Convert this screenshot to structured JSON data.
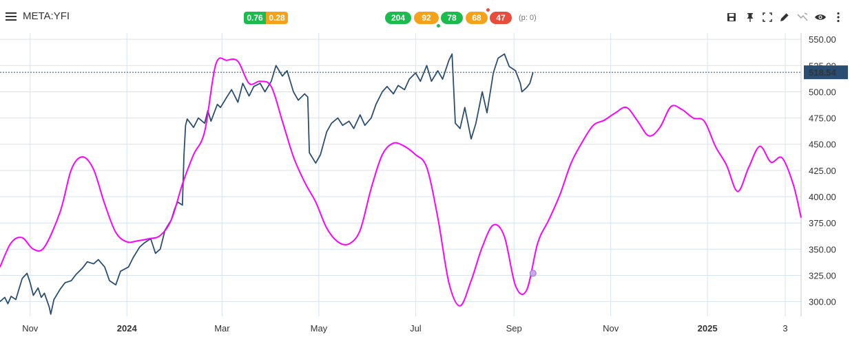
{
  "toolbar": {
    "symbol": "META:YFI",
    "badges_left": [
      "0.76",
      "0.28"
    ],
    "badges_right": [
      "204",
      "92",
      "78",
      "68",
      "47"
    ],
    "p_count": "(p: 0)",
    "tools": [
      "save-icon",
      "pin-icon",
      "fullscreen-icon",
      "draw-icon",
      "indicator-icon",
      "eye-icon",
      "more-icon"
    ]
  },
  "colors": {
    "price_line": "#2a4d72",
    "indicator_line": "#ff00ff",
    "grid": "#d6e3ee",
    "last_price_bg": "#2a4d72",
    "badge_green": "#1bbc4d",
    "badge_orange": "#f5a21b",
    "badge_red": "#e74c3c"
  },
  "chart_data": {
    "type": "line",
    "y_axis": {
      "ticks": [
        "300.00",
        "325.00",
        "350.00",
        "375.00",
        "400.00",
        "425.00",
        "450.00",
        "475.00",
        "500.00",
        "525.00",
        "550.00"
      ],
      "range": [
        286,
        556
      ],
      "position": "right"
    },
    "x_axis": {
      "ticks": [
        {
          "date": "2023-11-01",
          "label": "Nov",
          "bold": false
        },
        {
          "date": "2024-01-01",
          "label": "2024",
          "bold": true
        },
        {
          "date": "2024-03-01",
          "label": "Mar",
          "bold": false
        },
        {
          "date": "2024-05-01",
          "label": "May",
          "bold": false
        },
        {
          "date": "2024-07-01",
          "label": "Jul",
          "bold": false
        },
        {
          "date": "2024-09-01",
          "label": "Sep",
          "bold": false
        },
        {
          "date": "2024-11-01",
          "label": "Nov",
          "bold": false
        },
        {
          "date": "2025-01-01",
          "label": "2025",
          "bold": true
        },
        {
          "date": "2025-02-19",
          "label": "3",
          "bold": false
        }
      ],
      "range": [
        "2023-10-13",
        "2025-03-01"
      ]
    },
    "last_price": "518.54",
    "grid": true,
    "series": [
      {
        "color": "#2a4d72",
        "points": [
          [
            "2023-10-13",
            300
          ],
          [
            "2023-10-16",
            304
          ],
          [
            "2023-10-18",
            298
          ],
          [
            "2023-10-20",
            305
          ],
          [
            "2023-10-23",
            302
          ],
          [
            "2023-10-25",
            312
          ],
          [
            "2023-10-27",
            322
          ],
          [
            "2023-10-30",
            327
          ],
          [
            "2023-11-01",
            318
          ],
          [
            "2023-11-03",
            306
          ],
          [
            "2023-11-06",
            313
          ],
          [
            "2023-11-08",
            304
          ],
          [
            "2023-11-10",
            308
          ],
          [
            "2023-11-13",
            295
          ],
          [
            "2023-11-14",
            288
          ],
          [
            "2023-11-16",
            302
          ],
          [
            "2023-11-20",
            312
          ],
          [
            "2023-11-23",
            318
          ],
          [
            "2023-11-27",
            320
          ],
          [
            "2023-11-30",
            326
          ],
          [
            "2023-12-04",
            332
          ],
          [
            "2023-12-07",
            338
          ],
          [
            "2023-12-11",
            336
          ],
          [
            "2023-12-14",
            340
          ],
          [
            "2023-12-18",
            333
          ],
          [
            "2023-12-21",
            320
          ],
          [
            "2023-12-25",
            316
          ],
          [
            "2023-12-28",
            329
          ],
          [
            "2024-01-02",
            333
          ],
          [
            "2024-01-05",
            342
          ],
          [
            "2024-01-09",
            352
          ],
          [
            "2024-01-12",
            356
          ],
          [
            "2024-01-16",
            360
          ],
          [
            "2024-01-19",
            346
          ],
          [
            "2024-01-22",
            350
          ],
          [
            "2024-01-25",
            368
          ],
          [
            "2024-01-29",
            378
          ],
          [
            "2024-01-31",
            388
          ],
          [
            "2024-02-02",
            395
          ],
          [
            "2024-02-05",
            392
          ],
          [
            "2024-02-06",
            440
          ],
          [
            "2024-02-07",
            468
          ],
          [
            "2024-02-08",
            474
          ],
          [
            "2024-02-12",
            466
          ],
          [
            "2024-02-15",
            475
          ],
          [
            "2024-02-19",
            470
          ],
          [
            "2024-02-21",
            482
          ],
          [
            "2024-02-23",
            472
          ],
          [
            "2024-02-27",
            488
          ],
          [
            "2024-02-29",
            485
          ],
          [
            "2024-03-04",
            495
          ],
          [
            "2024-03-07",
            502
          ],
          [
            "2024-03-11",
            490
          ],
          [
            "2024-03-14",
            508
          ],
          [
            "2024-03-18",
            496
          ],
          [
            "2024-03-21",
            505
          ],
          [
            "2024-03-25",
            508
          ],
          [
            "2024-03-28",
            500
          ],
          [
            "2024-04-01",
            510
          ],
          [
            "2024-04-04",
            525
          ],
          [
            "2024-04-08",
            515
          ],
          [
            "2024-04-11",
            520
          ],
          [
            "2024-04-15",
            500
          ],
          [
            "2024-04-18",
            492
          ],
          [
            "2024-04-22",
            498
          ],
          [
            "2024-04-24",
            495
          ],
          [
            "2024-04-25",
            442
          ],
          [
            "2024-04-29",
            432
          ],
          [
            "2024-05-02",
            440
          ],
          [
            "2024-05-06",
            462
          ],
          [
            "2024-05-09",
            470
          ],
          [
            "2024-05-13",
            475
          ],
          [
            "2024-05-16",
            468
          ],
          [
            "2024-05-20",
            472
          ],
          [
            "2024-05-23",
            465
          ],
          [
            "2024-05-27",
            478
          ],
          [
            "2024-05-30",
            468
          ],
          [
            "2024-06-03",
            475
          ],
          [
            "2024-06-06",
            488
          ],
          [
            "2024-06-10",
            500
          ],
          [
            "2024-06-13",
            505
          ],
          [
            "2024-06-17",
            498
          ],
          [
            "2024-06-20",
            506
          ],
          [
            "2024-06-24",
            502
          ],
          [
            "2024-06-27",
            512
          ],
          [
            "2024-07-01",
            518
          ],
          [
            "2024-07-04",
            510
          ],
          [
            "2024-07-08",
            525
          ],
          [
            "2024-07-11",
            510
          ],
          [
            "2024-07-15",
            520
          ],
          [
            "2024-07-18",
            512
          ],
          [
            "2024-07-22",
            530
          ],
          [
            "2024-07-24",
            536
          ],
          [
            "2024-07-26",
            470
          ],
          [
            "2024-07-29",
            465
          ],
          [
            "2024-08-01",
            485
          ],
          [
            "2024-08-05",
            455
          ],
          [
            "2024-08-08",
            470
          ],
          [
            "2024-08-12",
            500
          ],
          [
            "2024-08-15",
            480
          ],
          [
            "2024-08-19",
            518
          ],
          [
            "2024-08-22",
            532
          ],
          [
            "2024-08-26",
            536
          ],
          [
            "2024-08-29",
            524
          ],
          [
            "2024-09-02",
            520
          ],
          [
            "2024-09-05",
            508
          ],
          [
            "2024-09-06",
            500
          ],
          [
            "2024-09-09",
            504
          ],
          [
            "2024-09-11",
            508
          ],
          [
            "2024-09-13",
            518.54
          ]
        ]
      },
      {
        "color": "#ff00ff",
        "points": [
          [
            "2023-10-13",
            333
          ],
          [
            "2023-10-20",
            356
          ],
          [
            "2023-10-27",
            361
          ],
          [
            "2023-11-03",
            350
          ],
          [
            "2023-11-10",
            352
          ],
          [
            "2023-11-20",
            386
          ],
          [
            "2023-11-27",
            426
          ],
          [
            "2023-12-04",
            438
          ],
          [
            "2023-12-11",
            426
          ],
          [
            "2023-12-18",
            393
          ],
          [
            "2023-12-25",
            366
          ],
          [
            "2024-01-01",
            357
          ],
          [
            "2024-01-08",
            358
          ],
          [
            "2024-01-15",
            360
          ],
          [
            "2024-01-22",
            363
          ],
          [
            "2024-01-29",
            378
          ],
          [
            "2024-02-05",
            412
          ],
          [
            "2024-02-12",
            440
          ],
          [
            "2024-02-19",
            462
          ],
          [
            "2024-02-26",
            526
          ],
          [
            "2024-03-04",
            530
          ],
          [
            "2024-03-11",
            529
          ],
          [
            "2024-03-18",
            508
          ],
          [
            "2024-03-25",
            510
          ],
          [
            "2024-04-01",
            505
          ],
          [
            "2024-04-08",
            472
          ],
          [
            "2024-04-15",
            438
          ],
          [
            "2024-04-22",
            414
          ],
          [
            "2024-04-29",
            395
          ],
          [
            "2024-05-06",
            370
          ],
          [
            "2024-05-13",
            357
          ],
          [
            "2024-05-20",
            355
          ],
          [
            "2024-05-27",
            368
          ],
          [
            "2024-06-03",
            408
          ],
          [
            "2024-06-10",
            440
          ],
          [
            "2024-06-17",
            451
          ],
          [
            "2024-06-24",
            448
          ],
          [
            "2024-07-01",
            440
          ],
          [
            "2024-07-08",
            428
          ],
          [
            "2024-07-15",
            380
          ],
          [
            "2024-07-22",
            318
          ],
          [
            "2024-07-29",
            296
          ],
          [
            "2024-08-05",
            320
          ],
          [
            "2024-08-12",
            352
          ],
          [
            "2024-08-19",
            373
          ],
          [
            "2024-08-26",
            362
          ],
          [
            "2024-09-02",
            315
          ],
          [
            "2024-09-09",
            311
          ],
          [
            "2024-09-16",
            356
          ],
          [
            "2024-09-23",
            378
          ],
          [
            "2024-09-30",
            402
          ],
          [
            "2024-10-07",
            432
          ],
          [
            "2024-10-14",
            452
          ],
          [
            "2024-10-21",
            468
          ],
          [
            "2024-10-28",
            473
          ],
          [
            "2024-11-04",
            480
          ],
          [
            "2024-11-11",
            485
          ],
          [
            "2024-11-18",
            472
          ],
          [
            "2024-11-25",
            458
          ],
          [
            "2024-12-02",
            466
          ],
          [
            "2024-12-09",
            486
          ],
          [
            "2024-12-16",
            483
          ],
          [
            "2024-12-23",
            475
          ],
          [
            "2024-12-30",
            472
          ],
          [
            "2025-01-06",
            448
          ],
          [
            "2025-01-13",
            430
          ],
          [
            "2025-01-20",
            405
          ],
          [
            "2025-01-27",
            428
          ],
          [
            "2025-02-03",
            448
          ],
          [
            "2025-02-10",
            433
          ],
          [
            "2025-02-17",
            437
          ],
          [
            "2025-02-24",
            412
          ],
          [
            "2025-03-01",
            380
          ]
        ]
      }
    ],
    "marker": {
      "date": "2024-09-13",
      "value": 327
    }
  }
}
